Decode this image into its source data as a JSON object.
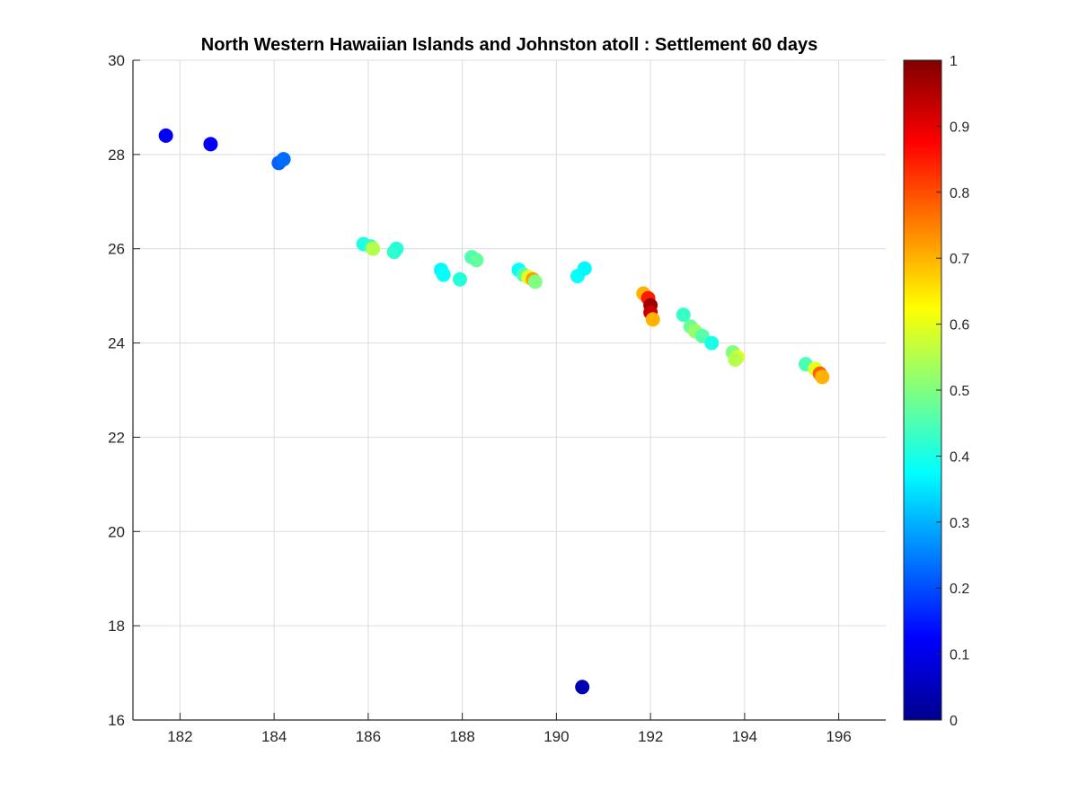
{
  "chart_data": {
    "type": "scatter",
    "title": "North Western Hawaiian Islands and Johnston atoll : Settlement 60 days",
    "xlim": [
      181,
      197
    ],
    "ylim": [
      16,
      30
    ],
    "xticks": [
      182,
      184,
      186,
      188,
      190,
      192,
      194,
      196
    ],
    "yticks": [
      16,
      18,
      20,
      22,
      24,
      26,
      28,
      30
    ],
    "xtick_labels": [
      "182",
      "184",
      "186",
      "188",
      "190",
      "192",
      "194",
      "196"
    ],
    "ytick_labels": [
      "16",
      "18",
      "20",
      "22",
      "24",
      "26",
      "28",
      "30"
    ],
    "grid": true,
    "colormap": "jet",
    "colorbar": {
      "range": [
        0,
        1
      ],
      "ticks": [
        0,
        0.1,
        0.2,
        0.3,
        0.4,
        0.5,
        0.6,
        0.7,
        0.8,
        0.9,
        1
      ],
      "tick_labels": [
        "0",
        "0.1",
        "0.2",
        "0.3",
        "0.4",
        "0.5",
        "0.6",
        "0.7",
        "0.8",
        "0.9",
        "1"
      ]
    },
    "points": [
      {
        "x": 181.7,
        "y": 28.4,
        "value": 0.12
      },
      {
        "x": 182.65,
        "y": 28.22,
        "value": 0.12
      },
      {
        "x": 184.1,
        "y": 27.82,
        "value": 0.22
      },
      {
        "x": 184.2,
        "y": 27.9,
        "value": 0.23
      },
      {
        "x": 185.9,
        "y": 26.1,
        "value": 0.4
      },
      {
        "x": 186.05,
        "y": 26.05,
        "value": 0.43
      },
      {
        "x": 186.1,
        "y": 26.0,
        "value": 0.55
      },
      {
        "x": 186.6,
        "y": 26.0,
        "value": 0.41
      },
      {
        "x": 186.55,
        "y": 25.93,
        "value": 0.42
      },
      {
        "x": 187.55,
        "y": 25.55,
        "value": 0.37
      },
      {
        "x": 187.6,
        "y": 25.45,
        "value": 0.38
      },
      {
        "x": 187.95,
        "y": 25.35,
        "value": 0.41
      },
      {
        "x": 188.2,
        "y": 25.82,
        "value": 0.45
      },
      {
        "x": 188.3,
        "y": 25.76,
        "value": 0.47
      },
      {
        "x": 189.2,
        "y": 25.55,
        "value": 0.38
      },
      {
        "x": 189.3,
        "y": 25.45,
        "value": 0.45
      },
      {
        "x": 189.4,
        "y": 25.4,
        "value": 0.6
      },
      {
        "x": 189.5,
        "y": 25.35,
        "value": 0.72
      },
      {
        "x": 189.55,
        "y": 25.3,
        "value": 0.5
      },
      {
        "x": 190.45,
        "y": 25.42,
        "value": 0.38
      },
      {
        "x": 190.6,
        "y": 25.58,
        "value": 0.37
      },
      {
        "x": 191.85,
        "y": 25.05,
        "value": 0.7
      },
      {
        "x": 191.95,
        "y": 24.95,
        "value": 0.85
      },
      {
        "x": 192.0,
        "y": 24.8,
        "value": 0.97
      },
      {
        "x": 192.0,
        "y": 24.65,
        "value": 0.93
      },
      {
        "x": 192.05,
        "y": 24.5,
        "value": 0.7
      },
      {
        "x": 192.7,
        "y": 24.6,
        "value": 0.43
      },
      {
        "x": 192.85,
        "y": 24.35,
        "value": 0.48
      },
      {
        "x": 192.95,
        "y": 24.25,
        "value": 0.52
      },
      {
        "x": 193.1,
        "y": 24.15,
        "value": 0.46
      },
      {
        "x": 193.3,
        "y": 24.0,
        "value": 0.4
      },
      {
        "x": 193.75,
        "y": 23.8,
        "value": 0.5
      },
      {
        "x": 193.85,
        "y": 23.7,
        "value": 0.6
      },
      {
        "x": 193.8,
        "y": 23.65,
        "value": 0.55
      },
      {
        "x": 195.3,
        "y": 23.55,
        "value": 0.45
      },
      {
        "x": 195.5,
        "y": 23.45,
        "value": 0.6
      },
      {
        "x": 195.6,
        "y": 23.35,
        "value": 0.78
      },
      {
        "x": 195.65,
        "y": 23.28,
        "value": 0.7
      },
      {
        "x": 190.55,
        "y": 16.7,
        "value": 0.05
      }
    ]
  }
}
